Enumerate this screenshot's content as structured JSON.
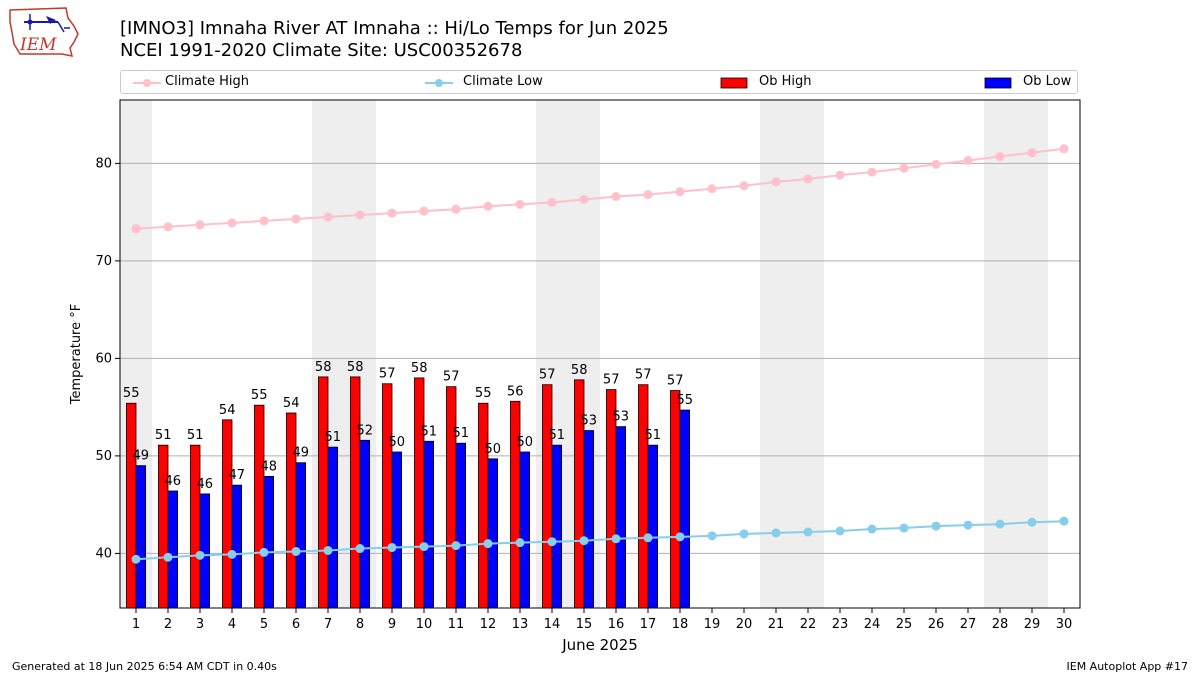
{
  "title_line1": "[IMNO3] Imnaha River  AT Imnaha :: Hi/Lo Temps for Jun 2025",
  "title_line2": "NCEI 1991-2020 Climate Site: USC00352678",
  "logo_text": "IEM",
  "footer_left": "Generated at 18 Jun 2025 6:54 AM CDT in 0.40s",
  "footer_right": "IEM Autoplot App #17",
  "legend": {
    "climate_high": "Climate High",
    "climate_low": "Climate Low",
    "ob_high": "Ob High",
    "ob_low": "Ob Low"
  },
  "colors": {
    "ob_high": "#ff0000",
    "ob_low": "#0000ff",
    "climate_high": "#ffc0cb",
    "climate_low": "#87ceeb",
    "weekend_band": "#eeeeee",
    "grid": "#b0b0b0"
  },
  "chart_data": {
    "type": "bar",
    "xlabel": "June 2025",
    "ylabel": "Temperature °F",
    "ylim": [
      34.4,
      86.5
    ],
    "xlim": [
      0.5,
      30.5
    ],
    "yticks": [
      40,
      50,
      60,
      70,
      80
    ],
    "grid": "horizontal",
    "legend_position": "top",
    "days": [
      1,
      2,
      3,
      4,
      5,
      6,
      7,
      8,
      9,
      10,
      11,
      12,
      13,
      14,
      15,
      16,
      17,
      18,
      19,
      20,
      21,
      22,
      23,
      24,
      25,
      26,
      27,
      28,
      29,
      30
    ],
    "weekend_days": [
      1,
      7,
      8,
      14,
      15,
      21,
      22,
      28,
      29
    ],
    "ob_high": [
      55.4,
      51.1,
      51.1,
      53.7,
      55.2,
      54.4,
      58.1,
      58.1,
      57.4,
      58.0,
      57.1,
      55.4,
      55.6,
      57.3,
      57.8,
      56.8,
      57.3,
      56.7
    ],
    "ob_low": [
      49.0,
      46.4,
      46.1,
      47.0,
      47.9,
      49.3,
      50.9,
      51.6,
      50.4,
      51.5,
      51.3,
      49.7,
      50.4,
      51.1,
      52.6,
      53.0,
      51.1,
      54.7
    ],
    "ob_high_labels": [
      "55",
      "51",
      "51",
      "54",
      "55",
      "54",
      "58",
      "58",
      "57",
      "58",
      "57",
      "55",
      "56",
      "57",
      "58",
      "57",
      "57",
      "57"
    ],
    "ob_low_labels": [
      "49",
      "46",
      "46",
      "47",
      "48",
      "49",
      "51",
      "52",
      "50",
      "51",
      "51",
      "50",
      "50",
      "51",
      "53",
      "53",
      "51",
      "55"
    ],
    "climate_high": [
      73.3,
      73.5,
      73.7,
      73.9,
      74.1,
      74.3,
      74.5,
      74.7,
      74.9,
      75.1,
      75.3,
      75.6,
      75.8,
      76.0,
      76.3,
      76.6,
      76.8,
      77.1,
      77.4,
      77.7,
      78.1,
      78.4,
      78.8,
      79.1,
      79.5,
      79.9,
      80.3,
      80.7,
      81.1,
      81.5
    ],
    "climate_low": [
      39.4,
      39.6,
      39.8,
      39.9,
      40.1,
      40.2,
      40.3,
      40.5,
      40.6,
      40.7,
      40.8,
      41.0,
      41.1,
      41.2,
      41.3,
      41.5,
      41.6,
      41.7,
      41.8,
      42.0,
      42.1,
      42.2,
      42.3,
      42.5,
      42.6,
      42.8,
      42.9,
      43.0,
      43.2,
      43.3
    ]
  }
}
